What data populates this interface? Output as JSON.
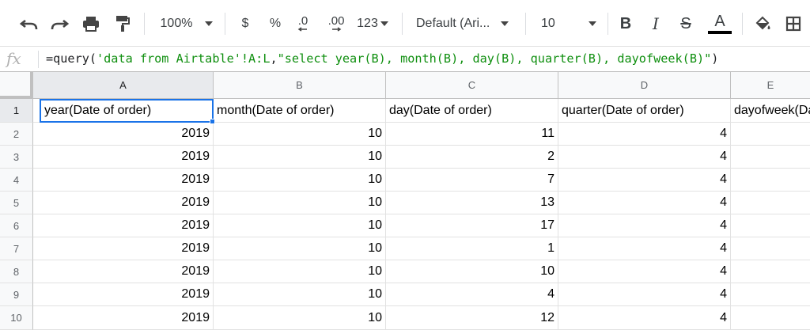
{
  "toolbar": {
    "zoom": "100%",
    "currency": "$",
    "percent": "%",
    "dec_decrease": ".0",
    "dec_increase": ".00",
    "more_formats": "123",
    "font": "Default (Ari...",
    "font_size": "10",
    "bold": "B",
    "italic": "I",
    "strike": "S",
    "text_color_label": "A",
    "icons": [
      "undo-icon",
      "redo-icon",
      "print-icon",
      "paint-format-icon",
      "fill-color-icon",
      "borders-icon"
    ]
  },
  "formula_bar": {
    "fx_label": "fx",
    "prefix": "=query(",
    "ref": "'data from Airtable'!A:L",
    "comma": ",",
    "query": "\"select year(B), month(B), day(B), quarter(B), dayofweek(B)\"",
    "suffix": ")"
  },
  "columns": [
    "A",
    "B",
    "C",
    "D",
    "E"
  ],
  "row_numbers": [
    "1",
    "2",
    "3",
    "4",
    "5",
    "6",
    "7",
    "8",
    "9",
    "10"
  ],
  "header_row": [
    "year(Date of order)",
    "month(Date of order)",
    "day(Date of order)",
    "quarter(Date of order)",
    "dayofweek(Date of order)"
  ],
  "rows": [
    [
      "2019",
      "10",
      "11",
      "4",
      ""
    ],
    [
      "2019",
      "10",
      "2",
      "4",
      ""
    ],
    [
      "2019",
      "10",
      "7",
      "4",
      ""
    ],
    [
      "2019",
      "10",
      "13",
      "4",
      ""
    ],
    [
      "2019",
      "10",
      "17",
      "4",
      ""
    ],
    [
      "2019",
      "10",
      "1",
      "4",
      ""
    ],
    [
      "2019",
      "10",
      "10",
      "4",
      ""
    ],
    [
      "2019",
      "10",
      "4",
      "4",
      ""
    ],
    [
      "2019",
      "10",
      "12",
      "4",
      ""
    ]
  ],
  "selection": {
    "cell": "A1",
    "color": "#1a73e8"
  }
}
